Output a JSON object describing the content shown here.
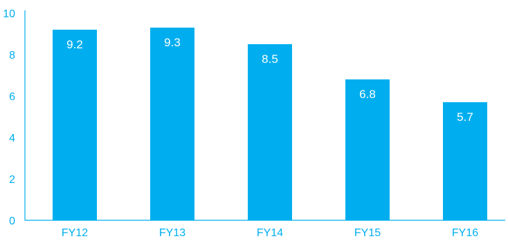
{
  "chart_data": {
    "type": "bar",
    "title": "",
    "xlabel": "",
    "ylabel": "",
    "categories": [
      "FY12",
      "FY13",
      "FY14",
      "FY15",
      "FY16"
    ],
    "values": [
      9.2,
      9.3,
      8.5,
      6.8,
      5.7
    ],
    "value_labels": [
      "9.2",
      "9.3",
      "8.5",
      "6.8",
      "5.7"
    ],
    "ylim": [
      0,
      10
    ],
    "yticks": [
      0,
      2,
      4,
      6,
      8,
      10
    ],
    "ytick_labels": [
      "0",
      "2",
      "4",
      "6",
      "8",
      "10"
    ],
    "grid": false,
    "legend": "none",
    "colors": {
      "bar": "#00aeef",
      "axis": "#00aeef",
      "text": "#00aeef",
      "value_label": "#ffffff"
    }
  }
}
